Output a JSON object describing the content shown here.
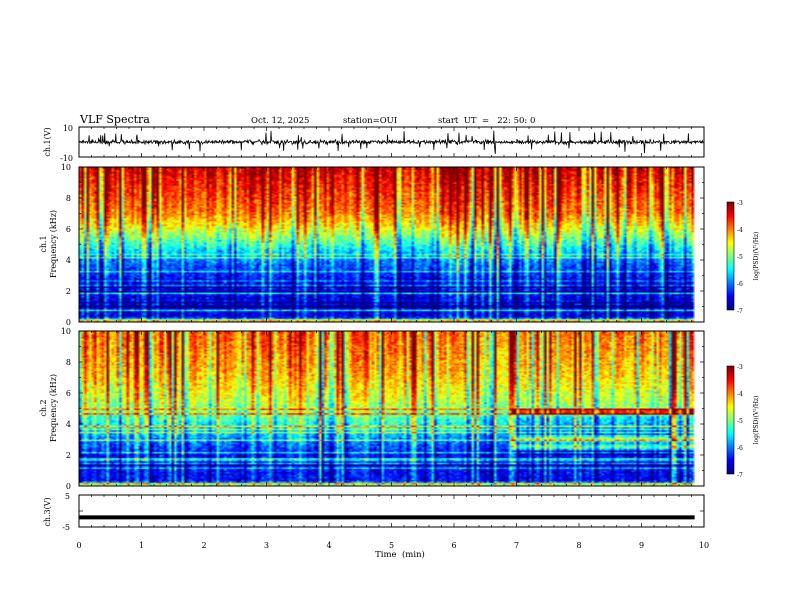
{
  "header": {
    "title": "VLF Spectra",
    "date": "Oct. 12, 2025",
    "station": "station=OUI",
    "start": "start  UT  =   22: 50: 0"
  },
  "chart_data": [
    {
      "type": "line",
      "panel": "ch1-waveform",
      "ylabel": "ch.1(V)",
      "yticks": [
        "10",
        "-10"
      ],
      "ylim": [
        -10,
        10
      ],
      "x": [
        0,
        10
      ],
      "xlim": [
        0,
        10
      ],
      "level": 0,
      "noise_amplitude": 1.2,
      "spike_amplitude": 7
    },
    {
      "type": "heatmap",
      "panel": "ch1-spectrogram",
      "ylabel_top": "ch.1",
      "ylabel": "Frequency (kHz)",
      "yticks": [
        "0",
        "2",
        "4",
        "6",
        "8",
        "10"
      ],
      "ylim": [
        0,
        10
      ],
      "xlim": [
        0,
        10
      ],
      "data_end_min": 9.85,
      "colorbar": {
        "label": "log(PSD)(V²/Hz)",
        "ticks": [
          "-3",
          "-4",
          "-5",
          "-6",
          "-7"
        ],
        "range": [
          -7,
          -3
        ]
      },
      "noise_floor_by_freq_khz": [
        [
          0.0,
          -5.2
        ],
        [
          0.3,
          -6.6
        ],
        [
          2.5,
          -6.6
        ],
        [
          4.0,
          -6.0
        ],
        [
          5.0,
          -5.3
        ],
        [
          6.0,
          -4.6
        ],
        [
          7.0,
          -4.0
        ],
        [
          10.0,
          -3.3
        ]
      ]
    },
    {
      "type": "heatmap",
      "panel": "ch2-spectrogram",
      "ylabel_top": "ch.2",
      "ylabel": "Frequency (kHz)",
      "yticks": [
        "0",
        "2",
        "4",
        "6",
        "8",
        "10"
      ],
      "ylim": [
        0,
        10
      ],
      "xlim": [
        0,
        10
      ],
      "data_end_min": 9.85,
      "colorbar": {
        "label": "log(PSD)(V²/Hz)",
        "ticks": [
          "-3",
          "-4",
          "-5",
          "-6",
          "-7"
        ],
        "range": [
          -7,
          -3
        ]
      },
      "noise_floor_by_freq_khz": [
        [
          0.0,
          -5.0
        ],
        [
          0.3,
          -6.5
        ],
        [
          2.0,
          -6.5
        ],
        [
          3.5,
          -5.7
        ],
        [
          5.0,
          -4.9
        ],
        [
          7.0,
          -4.3
        ],
        [
          10.0,
          -3.9
        ]
      ],
      "emission_bands_after_min": 6.9,
      "emission_bands_khz": [
        2.5,
        3.0,
        4.8
      ]
    },
    {
      "type": "line",
      "panel": "ch3-waveform",
      "ylabel": "ch.3(V)",
      "yticks": [
        "5",
        "-5"
      ],
      "ylim": [
        -5,
        5
      ],
      "x": [
        0,
        9.85
      ],
      "values": [
        -2,
        -2
      ],
      "xlabel": "Time  (min)",
      "xticks": [
        "0",
        "1",
        "2",
        "3",
        "4",
        "5",
        "6",
        "7",
        "8",
        "9",
        "10"
      ],
      "xlim": [
        0,
        10
      ]
    }
  ]
}
